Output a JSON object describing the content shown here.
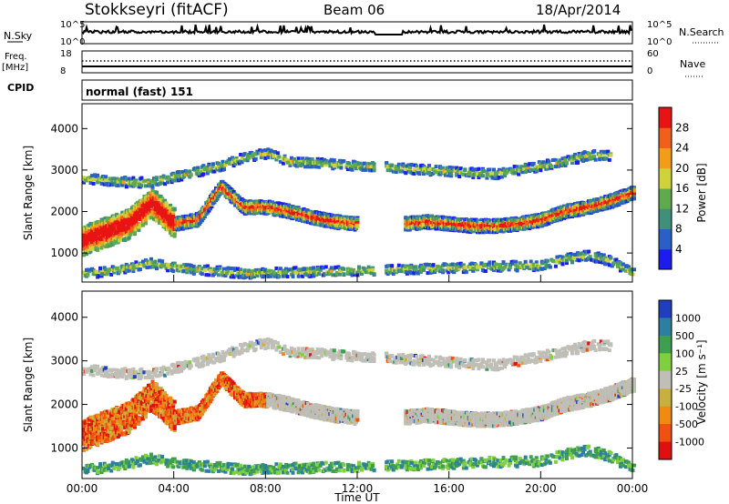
{
  "header": {
    "station": "Stokkseyri (fitACF)",
    "beam": "Beam 06",
    "date": "18/Apr/2014"
  },
  "summary": {
    "nsky_label": "N.Sky",
    "nsky_hi": "10^5",
    "nsky_lo": "10^0",
    "nsearch_label": "N.Search",
    "freq_label": "Freq.",
    "freq_unit": "[MHz]",
    "freq_hi": "18",
    "freq_lo": "8",
    "nave_label": "Nave",
    "nave_hi": "60",
    "nave_lo": "0",
    "cpid_label": "CPID",
    "cpid_value": "normal (fast) 151"
  },
  "panels": {
    "power": {
      "ylabel": "Slant Range [km]",
      "cbar_label": "Power [dB]"
    },
    "velocity": {
      "ylabel": "Slant Range [km]",
      "cbar_label": "Velocity [m s⁻¹]"
    }
  },
  "x_axis": {
    "label": "Time UT",
    "ticks": [
      "00:00",
      "04:00",
      "08:00",
      "12:00",
      "16:00",
      "20:00",
      "00:00"
    ]
  },
  "y_ticks": [
    "1000",
    "2000",
    "3000",
    "4000"
  ],
  "power_scale": [
    "4",
    "8",
    "12",
    "16",
    "20",
    "24",
    "28"
  ],
  "power_colors": [
    "#1c1cf0",
    "#2a5fc8",
    "#3f8f7a",
    "#5faa4c",
    "#cfd23a",
    "#f39c1a",
    "#f0601a",
    "#e81414"
  ],
  "velocity_scale": [
    "1000",
    "500",
    "100",
    "25",
    "-25",
    "-100",
    "-500",
    "-1000"
  ],
  "velocity_colors": [
    "#1f3fbf",
    "#2c7fa0",
    "#3f9f50",
    "#7fcf3f",
    "#bfbfb7",
    "#c8b040",
    "#f08a10",
    "#f05010",
    "#e01010"
  ],
  "chart_data": {
    "type": "heatmap",
    "x_range_hours": [
      0,
      24
    ],
    "y_range_km": [
      300,
      4600
    ],
    "grid": false,
    "power_db_range": [
      3,
      30
    ],
    "velocity_range": [
      -1000,
      1000
    ],
    "echo_bands": [
      {
        "name": "main",
        "t": [
          0,
          1,
          2,
          3,
          4,
          5,
          6,
          7,
          8,
          9,
          10,
          11,
          12,
          13,
          14,
          15,
          16,
          17,
          18,
          19,
          20,
          21,
          22,
          23,
          24
        ],
        "range_km": [
          1300,
          1500,
          1700,
          2200,
          1700,
          1800,
          2600,
          2100,
          2100,
          2000,
          1850,
          1750,
          1700,
          null,
          1700,
          1750,
          1700,
          1650,
          1650,
          1700,
          1800,
          2000,
          2100,
          2250,
          2450
        ]
      },
      {
        "name": "upper",
        "t": [
          0,
          1,
          2,
          3,
          6,
          7,
          8,
          9,
          18,
          19,
          20,
          21,
          22,
          23
        ],
        "range_km": [
          2800,
          2750,
          2700,
          2700,
          3100,
          3300,
          3400,
          3200,
          2900,
          3000,
          3100,
          3200,
          3350,
          3350
        ]
      },
      {
        "name": "lower",
        "t": [
          0,
          1,
          2,
          3,
          4,
          5,
          6,
          7,
          20,
          21,
          22,
          23,
          24
        ],
        "range_km": [
          500,
          550,
          650,
          750,
          650,
          600,
          550,
          500,
          700,
          850,
          950,
          800,
          500
        ]
      }
    ]
  }
}
